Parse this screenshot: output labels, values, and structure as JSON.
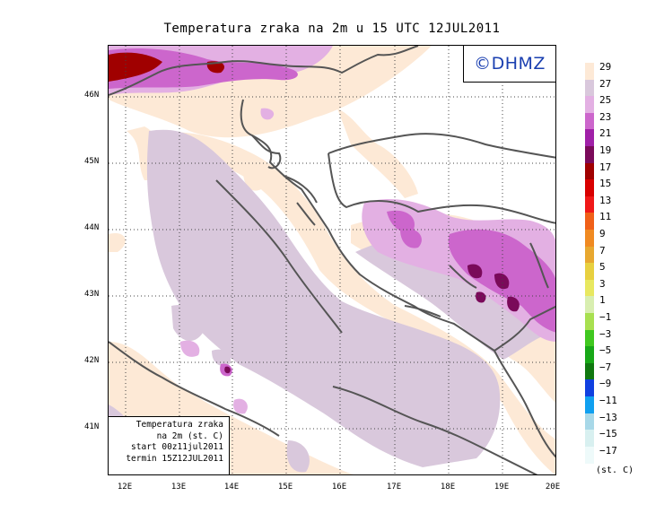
{
  "title": "Temperatura zraka na 2m u 15 UTC 12JUL2011",
  "logo": "©DHMZ",
  "info": {
    "line1": "Temperatura zraka",
    "line2": "na 2m (st. C)",
    "line3": "start 00z11jul2011",
    "line4": "termin 15Z12JUL2011"
  },
  "lat_labels": [
    "46N",
    "45N",
    "44N",
    "43N",
    "42N",
    "41N"
  ],
  "lon_labels": [
    "12E",
    "13E",
    "14E",
    "15E",
    "16E",
    "17E",
    "18E",
    "19E",
    "20E"
  ],
  "legend": {
    "labels": [
      "29",
      "27",
      "25",
      "23",
      "21",
      "19",
      "17",
      "15",
      "13",
      "11",
      "9",
      "7",
      "5",
      "3",
      "1",
      "−1",
      "−3",
      "−5",
      "−7",
      "−9",
      "−11",
      "−13",
      "−15",
      "−17"
    ],
    "colors": [
      "#fde9d6",
      "#d9c8dc",
      "#e3b0e3",
      "#cc66cc",
      "#a020a8",
      "#7a0a5a",
      "#a00000",
      "#d80000",
      "#f01818",
      "#f06018",
      "#f08a22",
      "#e8a830",
      "#e8d040",
      "#e8e860",
      "#d8eeb0",
      "#a8e050",
      "#40c820",
      "#18a818",
      "#107810",
      "#1040e0",
      "#10a0f0",
      "#a8d8e8",
      "#d8f0f0",
      "#eefafa"
    ],
    "unit": "(st. C)"
  },
  "colors": {
    "warm_27_29": "#fde9d6",
    "warm_25_27": "#d9c8dc",
    "warm_23_25": "#e3b0e3",
    "warm_21_23": "#cc66cc",
    "hot_17_19": "#a00000",
    "coast": "#555555",
    "logo_text": "#1a3fb0"
  }
}
